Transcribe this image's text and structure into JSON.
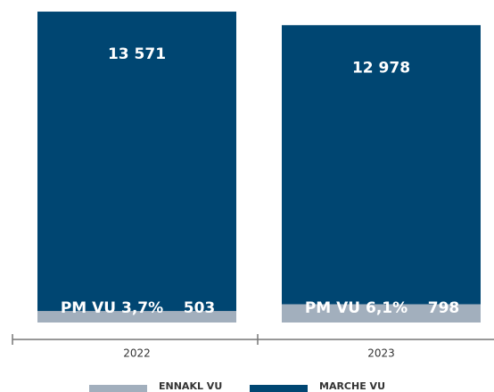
{
  "chart_data": {
    "type": "bar",
    "categories": [
      "2022",
      "2023"
    ],
    "series": [
      {
        "name": "ENNAKL VU",
        "color": "#a2afbd",
        "values": [
          503,
          798
        ],
        "share_labels": [
          "PM VU 3,7%",
          "PM VU 6,1%"
        ]
      },
      {
        "name": "MARCHE VU",
        "color": "#004672",
        "values": [
          13571,
          12978
        ],
        "value_labels": [
          "13 571",
          "12 978"
        ]
      }
    ],
    "ylim": [
      0,
      14000
    ]
  }
}
